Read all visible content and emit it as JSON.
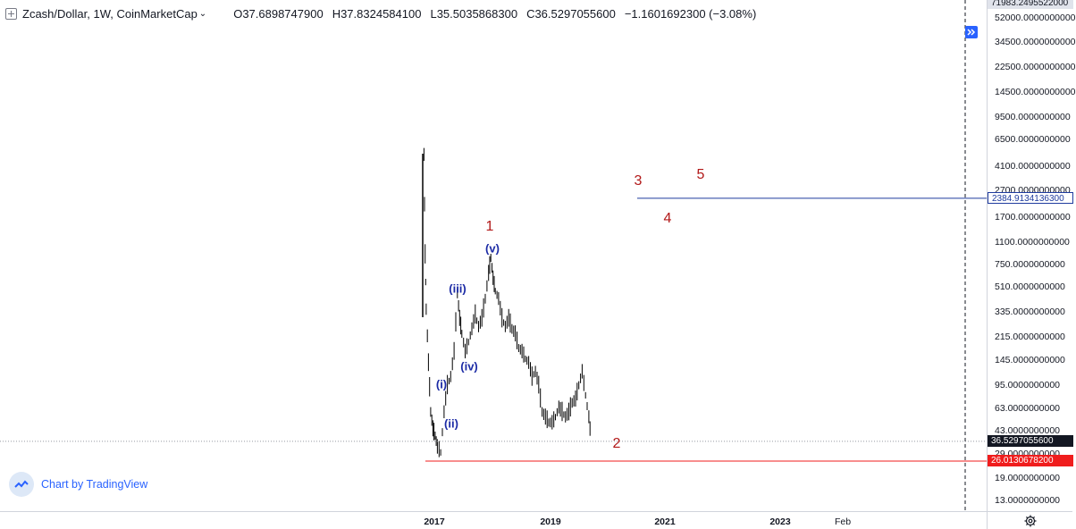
{
  "header": {
    "symbol": "Zcash/Dollar, 1W, CoinMarketCap",
    "caret": "⌄",
    "open_key": "O",
    "open": "37.6898747900",
    "high_key": "H",
    "high": "37.8324584100",
    "low_key": "L",
    "low": "35.5035868300",
    "close_key": "C",
    "close": "36.5297055600",
    "change": "−1.1601692300 (−3.08%)"
  },
  "price_axis": {
    "labels": [
      "52000.0000000000",
      "34500.0000000000",
      "22500.0000000000",
      "14500.0000000000",
      "9500.0000000000",
      "6500.0000000000",
      "4100.0000000000",
      "2700.0000000000",
      "1700.0000000000",
      "1100.0000000000",
      "750.0000000000",
      "510.0000000000",
      "335.0000000000",
      "215.0000000000",
      "145.0000000000",
      "95.0000000000",
      "63.0000000000",
      "43.0000000000",
      "29.0000000000",
      "19.0000000000",
      "13.0000000000"
    ],
    "top_tag": "71983.2495522000",
    "current_tag": "36.5297055600",
    "blue_tag": "2384.9134136300",
    "red_tag": "26.0130678200"
  },
  "time_axis": {
    "labels": [
      "2017",
      "2019",
      "2021",
      "2023",
      "Feb"
    ]
  },
  "wave_labels": {
    "red": [
      "1",
      "2",
      "3",
      "4",
      "5"
    ],
    "blue": [
      "(i)",
      "(ii)",
      "(iii)",
      "(iv)",
      "(v)"
    ]
  },
  "brand": {
    "text": "Chart by TradingView"
  },
  "colors": {
    "candle": "#000000",
    "blue_line": "#1e3b9e",
    "red_line": "#f01d1d",
    "wave_red": "#b21818",
    "wave_blue": "#1b2aa5",
    "accent": "#2962ff"
  },
  "chart_data": {
    "type": "line",
    "title": "Zcash/Dollar, 1W, CoinMarketCap",
    "y_scale": "log",
    "ylim": [
      11,
      71983
    ],
    "x_range": [
      "2016-10",
      "2024-03"
    ],
    "horizontal_lines": [
      {
        "value": 2384.91341363,
        "color": "#1e3b9e",
        "from": "2020-07"
      },
      {
        "value": 26.01306782,
        "color": "#f01d1d",
        "from": "2016-10"
      }
    ],
    "series": [
      {
        "x": [
          "2016-10-28",
          "2016-11-04",
          "2016-11-11",
          "2016-11-25",
          "2016-12-09",
          "2016-12-23",
          "2017-01-06",
          "2017-01-20",
          "2017-02-10",
          "2017-03-03",
          "2017-03-24",
          "2017-04-14",
          "2017-05-05",
          "2017-05-26",
          "2017-06-09",
          "2017-06-23",
          "2017-07-14",
          "2017-08-04",
          "2017-08-25",
          "2017-09-15",
          "2017-10-06",
          "2017-10-27",
          "2017-11-17",
          "2017-12-08",
          "2017-12-22",
          "2018-01-05",
          "2018-01-19",
          "2018-02-09",
          "2018-03-02",
          "2018-03-23",
          "2018-04-13",
          "2018-05-04",
          "2018-05-25",
          "2018-06-15",
          "2018-07-06",
          "2018-07-27",
          "2018-08-17",
          "2018-09-07",
          "2018-09-28",
          "2018-10-19",
          "2018-11-09",
          "2018-11-30",
          "2018-12-21",
          "2019-01-11",
          "2019-02-01",
          "2019-02-22",
          "2019-03-15",
          "2019-04-05",
          "2019-04-26",
          "2019-05-17",
          "2019-06-07",
          "2019-06-28",
          "2019-07-19",
          "2019-08-09",
          "2019-08-30",
          "2019-09-13"
        ],
        "values": [
          5000,
          900,
          350,
          140,
          60,
          45,
          40,
          33,
          30,
          60,
          95,
          110,
          170,
          460,
          300,
          230,
          170,
          200,
          250,
          320,
          260,
          300,
          420,
          650,
          850,
          600,
          480,
          420,
          300,
          260,
          300,
          250,
          230,
          180,
          170,
          150,
          140,
          110,
          120,
          95,
          60,
          55,
          50,
          50,
          55,
          65,
          60,
          55,
          60,
          70,
          75,
          95,
          120,
          80,
          55,
          36.53
        ]
      }
    ],
    "annotations": [
      {
        "text": "1",
        "x": "2018-01",
        "y": 1600
      },
      {
        "text": "2",
        "x": "2019-11",
        "y": 32
      },
      {
        "text": "3",
        "x": "2020-06",
        "y": 3500
      },
      {
        "text": "4",
        "x": "2020-08",
        "y": 1850
      },
      {
        "text": "5",
        "x": "2021-02",
        "y": 3800
      },
      {
        "text": "(i)",
        "x": "2017-03",
        "y": 80
      },
      {
        "text": "(ii)",
        "x": "2017-04",
        "y": 50
      },
      {
        "text": "(iii)",
        "x": "2017-06",
        "y": 500
      },
      {
        "text": "(iv)",
        "x": "2017-09",
        "y": 160
      },
      {
        "text": "(v)",
        "x": "2017-12",
        "y": 1000
      }
    ]
  }
}
